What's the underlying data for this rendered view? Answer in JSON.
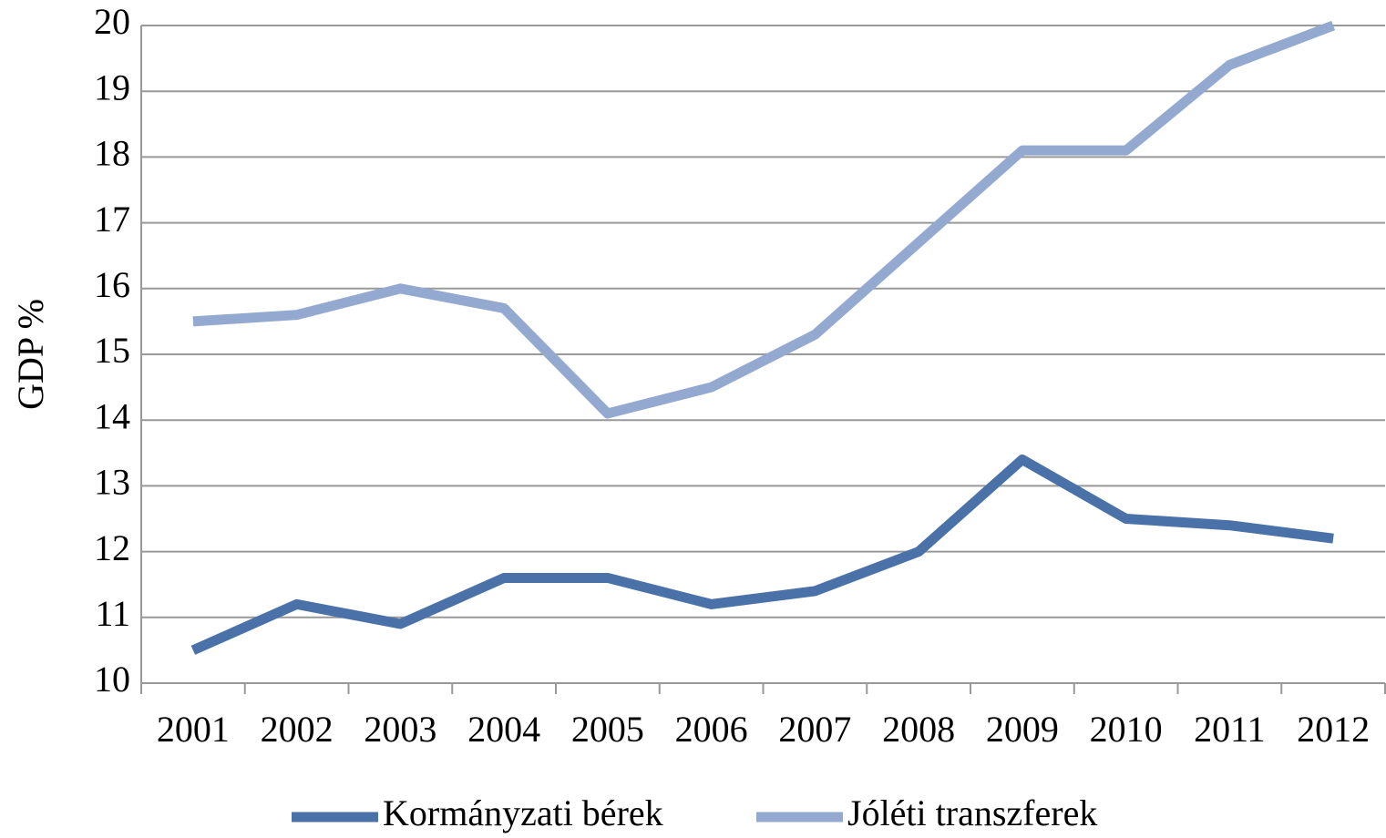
{
  "chart_data": {
    "type": "line",
    "y_label": "GDP %",
    "categories": [
      "2001",
      "2002",
      "2003",
      "2004",
      "2005",
      "2006",
      "2007",
      "2008",
      "2009",
      "2010",
      "2011",
      "2012"
    ],
    "series": [
      {
        "name": "Kormányzati bérek",
        "color": "#4a72a8",
        "values": [
          10.5,
          11.2,
          10.9,
          11.6,
          11.6,
          11.2,
          11.4,
          12.0,
          13.4,
          12.5,
          12.4,
          12.2
        ]
      },
      {
        "name": "Jóléti transzferek",
        "color": "#93a9cf",
        "values": [
          15.5,
          15.6,
          16.0,
          15.7,
          14.1,
          14.5,
          15.3,
          16.7,
          18.1,
          18.1,
          19.4,
          20.0
        ]
      }
    ],
    "ylim": [
      10,
      20
    ],
    "yticks": [
      10,
      11,
      12,
      13,
      14,
      15,
      16,
      17,
      18,
      19,
      20
    ],
    "grid": true,
    "legend": "bottom"
  }
}
